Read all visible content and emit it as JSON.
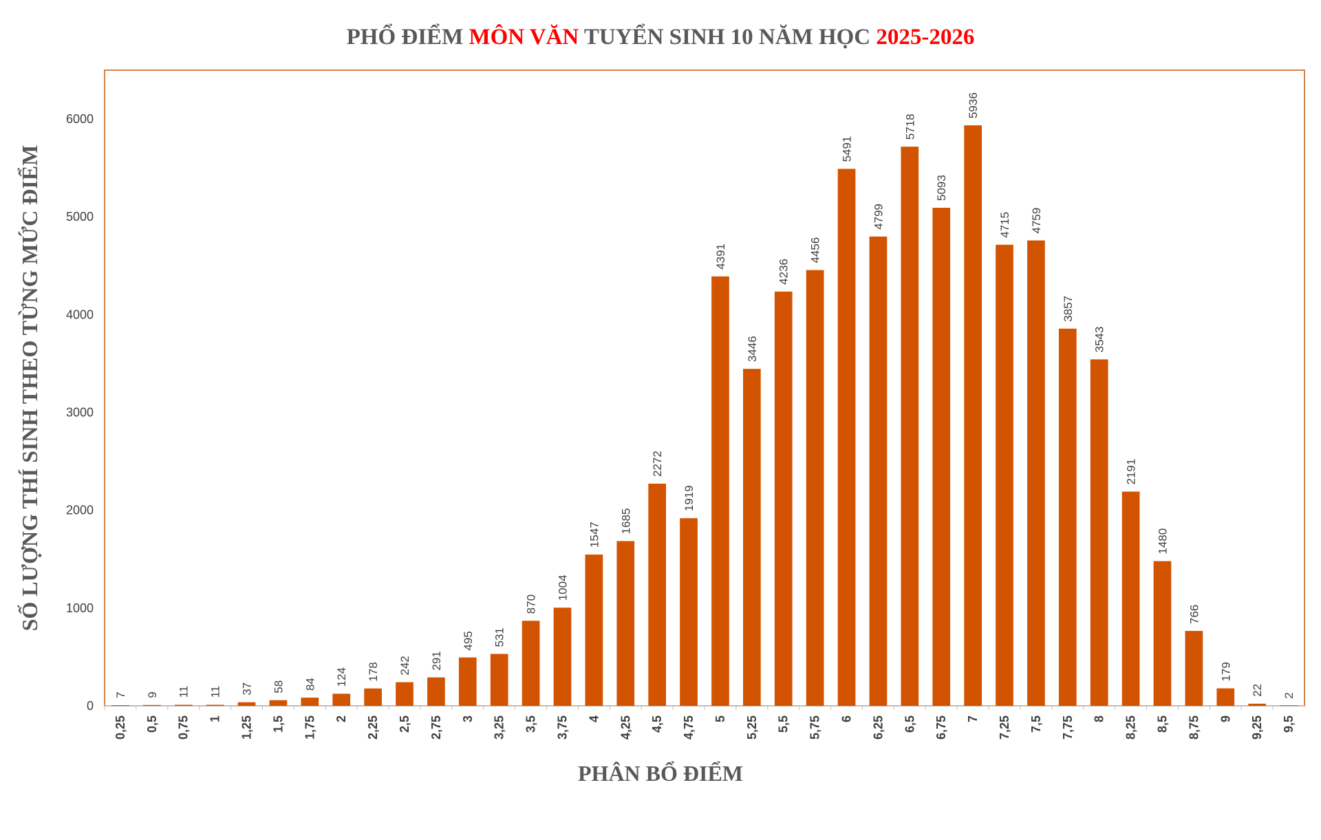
{
  "chart_data": {
    "type": "bar",
    "title_parts": [
      {
        "text": "PHỔ ĐIỂM ",
        "color": "#595959"
      },
      {
        "text": "MÔN VĂN",
        "color": "#ff0000"
      },
      {
        "text": " TUYỂN SINH 10 NĂM HỌC ",
        "color": "#595959"
      },
      {
        "text": "2025-2026",
        "color": "#ff0000"
      }
    ],
    "xlabel": "PHÂN BỔ ĐIỂM",
    "ylabel": "SỐ LƯỢNG THÍ SINH THEO TỪNG MỨC ĐIỂM",
    "ylim": [
      0,
      6500
    ],
    "yticks": [
      0,
      1000,
      2000,
      3000,
      4000,
      5000,
      6000
    ],
    "grid": false,
    "legend": "none",
    "bar_color": "#d35400",
    "frame_color": "#c55a11",
    "categories": [
      "0,25",
      "0,5",
      "0,75",
      "1",
      "1,25",
      "1,5",
      "1,75",
      "2",
      "2,25",
      "2,5",
      "2,75",
      "3",
      "3,25",
      "3,5",
      "3,75",
      "4",
      "4,25",
      "4,5",
      "4,75",
      "5",
      "5,25",
      "5,5",
      "5,75",
      "6",
      "6,25",
      "6,5",
      "6,75",
      "7",
      "7,25",
      "7,5",
      "7,75",
      "8",
      "8,25",
      "8,5",
      "8,75",
      "9",
      "9,25",
      "9,5"
    ],
    "values": [
      7,
      9,
      11,
      11,
      37,
      58,
      84,
      124,
      178,
      242,
      291,
      495,
      531,
      870,
      1004,
      1547,
      1685,
      2272,
      1919,
      4391,
      3446,
      4236,
      4456,
      5491,
      4799,
      5718,
      5093,
      5936,
      4715,
      4759,
      3857,
      3543,
      2191,
      1480,
      766,
      179,
      22,
      2
    ]
  }
}
